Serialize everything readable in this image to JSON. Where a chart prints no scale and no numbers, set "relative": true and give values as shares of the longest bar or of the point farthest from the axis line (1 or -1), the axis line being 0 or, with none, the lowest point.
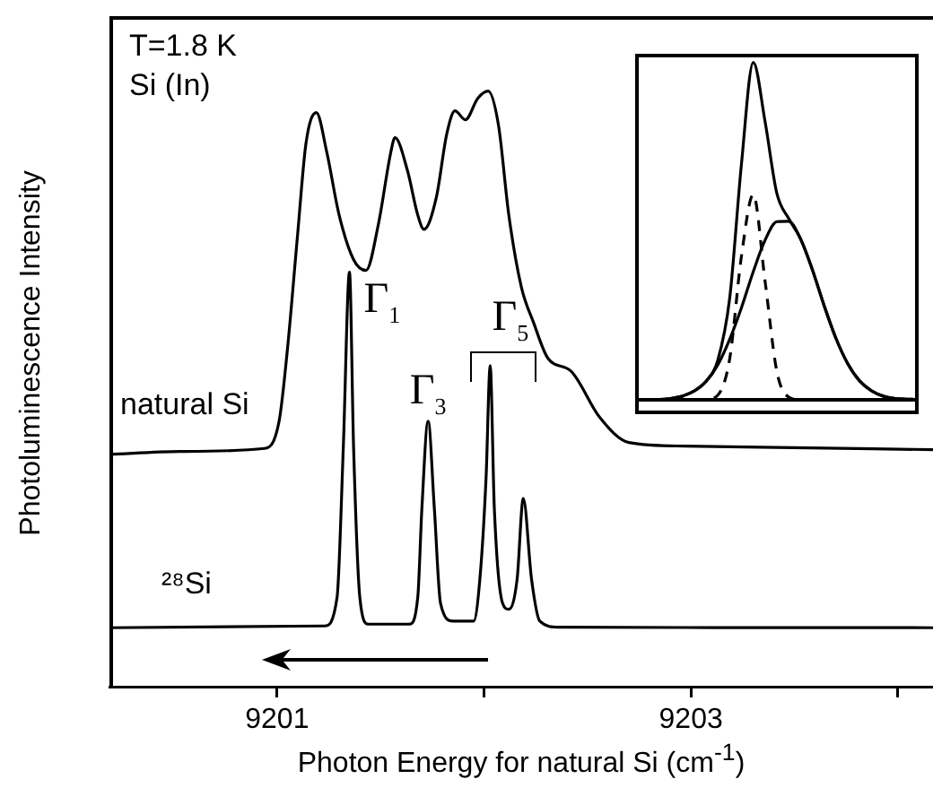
{
  "chart_data": [
    {
      "type": "line",
      "xlabel": "Photon Energy for natural Si (cm$^{-1}$)",
      "ylabel": "Photoluminescence Intensity",
      "relative": true,
      "xlim": [
        9200.19,
        9204.17
      ],
      "xticks": [
        9201,
        {
          "value": 9202,
          "label": null
        },
        9203,
        {
          "value": 9204,
          "label": null
        }
      ],
      "grid": false,
      "legend": false,
      "marker": "none",
      "line_style": "solid",
      "series": [
        {
          "name": "natural Si",
          "color": "#000000",
          "x": [
            9200.19,
            9200.53,
            9200.94,
            9201.01,
            9201.05,
            9201.1,
            9201.14,
            9201.19,
            9201.24,
            9201.3,
            9201.37,
            9201.43,
            9201.49,
            9201.55,
            9201.57,
            9201.63,
            9201.68,
            9201.71,
            9201.77,
            9201.82,
            9201.86,
            9201.91,
            9201.97,
            9202.02,
            9202.07,
            9202.12,
            9202.18,
            9202.24,
            9202.31,
            9202.42,
            9202.56,
            9202.7,
            9202.97,
            9203.57,
            9204.17
          ],
          "values": [
            0.39,
            0.395,
            0.4,
            0.446,
            0.566,
            0.762,
            0.913,
            0.964,
            0.898,
            0.792,
            0.717,
            0.699,
            0.777,
            0.898,
            0.922,
            0.867,
            0.792,
            0.768,
            0.822,
            0.928,
            0.967,
            0.952,
            0.988,
            1,
            0.943,
            0.792,
            0.672,
            0.611,
            0.551,
            0.53,
            0.452,
            0.41,
            0.404,
            0.401,
            0.398
          ]
        },
        {
          "name": "²⁸Si",
          "color": "#000000",
          "x": [
            9200.19,
            9201.23,
            9201.29,
            9201.32,
            9201.35,
            9201.37,
            9201.4,
            9201.44,
            9201.64,
            9201.68,
            9201.7,
            9201.73,
            9201.76,
            9201.79,
            9201.85,
            9201.95,
            9201.98,
            9202.01,
            9202.03,
            9202.05,
            9202.09,
            9202.12,
            9202.16,
            9202.19,
            9202.23,
            9202.27,
            9202.36,
            9204.17
          ],
          "values": [
            0.099,
            0.102,
            0.15,
            0.4,
            0.696,
            0.4,
            0.15,
            0.105,
            0.105,
            0.15,
            0.3,
            0.446,
            0.3,
            0.14,
            0.11,
            0.11,
            0.18,
            0.35,
            0.539,
            0.3,
            0.14,
            0.13,
            0.18,
            0.316,
            0.18,
            0.11,
            0.1,
            0.099
          ]
        }
      ],
      "annotations": [
        "T=1.8 K",
        "Si (In)",
        {
          "text": "Γ$_{1}$",
          "x": 9201.35,
          "y": 0.696
        },
        {
          "text": "Γ$_{3}$",
          "x": 9201.73,
          "y": 0.446
        },
        {
          "text": "Γ$_{5}$",
          "x": 9202.03,
          "y": 0.539
        }
      ]
    },
    {
      "type": "line",
      "relative": true,
      "categories": [
        null,
        null,
        null,
        null,
        null,
        null,
        null,
        null,
        null,
        null,
        null,
        null,
        null,
        null,
        null,
        null,
        null,
        null,
        null,
        null,
        null,
        null,
        null,
        null,
        null
      ],
      "marker": "none",
      "series": [
        {
          "color": "#000000",
          "line_style": "solid",
          "values": [
            0,
            0.001,
            0.001,
            0.004,
            0.011,
            0.026,
            0.055,
            0.118,
            0.3,
            0.699,
            1,
            0.824,
            0.611,
            0.537,
            0.477,
            0.386,
            0.279,
            0.182,
            0.107,
            0.056,
            0.027,
            0.011,
            0.004,
            0.002,
            0.001
          ]
        },
        {
          "color": "#000000",
          "line_style": "dashed",
          "values": [
            0,
            0,
            0,
            0,
            0,
            0,
            0.001,
            0.014,
            0.121,
            0.426,
            0.608,
            0.351,
            0.083,
            0.008,
            0,
            0,
            0,
            0,
            0,
            0,
            0,
            0,
            0,
            0,
            0
          ]
        },
        {
          "color": "#000000",
          "line_style": "solid",
          "values": [
            0,
            0.001,
            0.001,
            0.004,
            0.011,
            0.026,
            0.054,
            0.104,
            0.179,
            0.273,
            0.38,
            0.473,
            0.528,
            0.529,
            0.477,
            0.386,
            0.279,
            0.182,
            0.107,
            0.056,
            0.027,
            0.011,
            0.004,
            0.002,
            0.001
          ]
        }
      ]
    }
  ]
}
